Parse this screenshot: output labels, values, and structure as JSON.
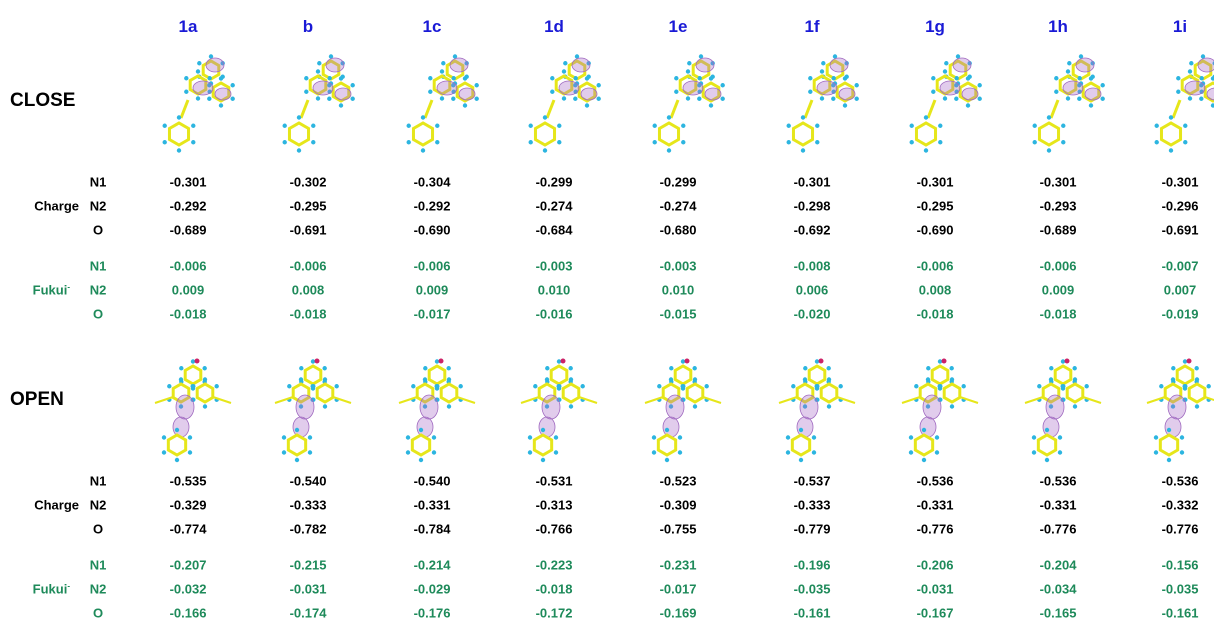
{
  "columns": [
    "1a",
    "b",
    "1c",
    "1d",
    "1e",
    "1f",
    "1g",
    "1h",
    "1i"
  ],
  "sections": [
    {
      "title": "CLOSE",
      "groups": [
        {
          "label": "Charge",
          "rows": [
            {
              "atom": "N1",
              "values": [
                "-0.301",
                "-0.302",
                "-0.304",
                "-0.299",
                "-0.299",
                "-0.301",
                "-0.301",
                "-0.301",
                "-0.301"
              ]
            },
            {
              "atom": "N2",
              "values": [
                "-0.292",
                "-0.295",
                "-0.292",
                "-0.274",
                "-0.274",
                "-0.298",
                "-0.295",
                "-0.293",
                "-0.296"
              ]
            },
            {
              "atom": "O",
              "values": [
                "-0.689",
                "-0.691",
                "-0.690",
                "-0.684",
                "-0.680",
                "-0.692",
                "-0.690",
                "-0.689",
                "-0.691"
              ]
            }
          ]
        },
        {
          "label": "Fukui",
          "superscript": "-",
          "rows": [
            {
              "atom": "N1",
              "values": [
                "-0.006",
                "-0.006",
                "-0.006",
                "-0.003",
                "-0.003",
                "-0.008",
                "-0.006",
                "-0.006",
                "-0.007"
              ]
            },
            {
              "atom": "N2",
              "values": [
                "0.009",
                "0.008",
                "0.009",
                "0.010",
                "0.010",
                "0.006",
                "0.008",
                "0.009",
                "0.007"
              ]
            },
            {
              "atom": "O",
              "values": [
                "-0.018",
                "-0.018",
                "-0.017",
                "-0.016",
                "-0.015",
                "-0.020",
                "-0.018",
                "-0.018",
                "-0.019"
              ]
            }
          ]
        }
      ]
    },
    {
      "title": "OPEN",
      "groups": [
        {
          "label": "Charge",
          "rows": [
            {
              "atom": "N1",
              "values": [
                "-0.535",
                "-0.540",
                "-0.540",
                "-0.531",
                "-0.523",
                "-0.537",
                "-0.536",
                "-0.536",
                "-0.536"
              ]
            },
            {
              "atom": "N2",
              "values": [
                "-0.329",
                "-0.333",
                "-0.331",
                "-0.313",
                "-0.309",
                "-0.333",
                "-0.331",
                "-0.331",
                "-0.332"
              ]
            },
            {
              "atom": "O",
              "values": [
                "-0.774",
                "-0.782",
                "-0.784",
                "-0.766",
                "-0.755",
                "-0.779",
                "-0.776",
                "-0.776",
                "-0.776"
              ]
            }
          ]
        },
        {
          "label": "Fukui",
          "superscript": "-",
          "rows": [
            {
              "atom": "N1",
              "values": [
                "-0.207",
                "-0.215",
                "-0.214",
                "-0.223",
                "-0.231",
                "-0.196",
                "-0.206",
                "-0.204",
                "-0.156"
              ]
            },
            {
              "atom": "N2",
              "values": [
                "-0.032",
                "-0.031",
                "-0.029",
                "-0.018",
                "-0.017",
                "-0.035",
                "-0.031",
                "-0.034",
                "-0.035"
              ]
            },
            {
              "atom": "O",
              "values": [
                "-0.166",
                "-0.174",
                "-0.176",
                "-0.172",
                "-0.169",
                "-0.161",
                "-0.167",
                "-0.165",
                "-0.161"
              ]
            }
          ]
        }
      ]
    }
  ]
}
